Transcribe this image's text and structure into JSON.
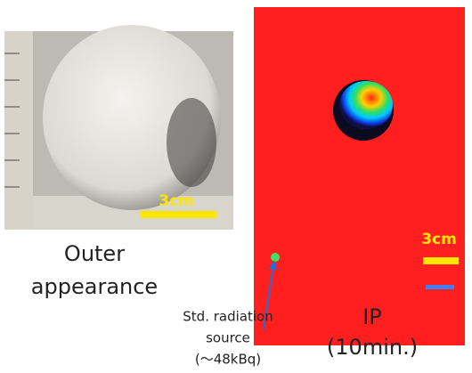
{
  "left": {
    "scale_label": "3cm",
    "caption": [
      "Outer",
      "appearance"
    ]
  },
  "right": {
    "scale_label": "3cm",
    "caption": [
      "IP",
      "(10min.)"
    ],
    "source_label": [
      "Std. radiation",
      "source",
      "(～48kBq)"
    ]
  }
}
